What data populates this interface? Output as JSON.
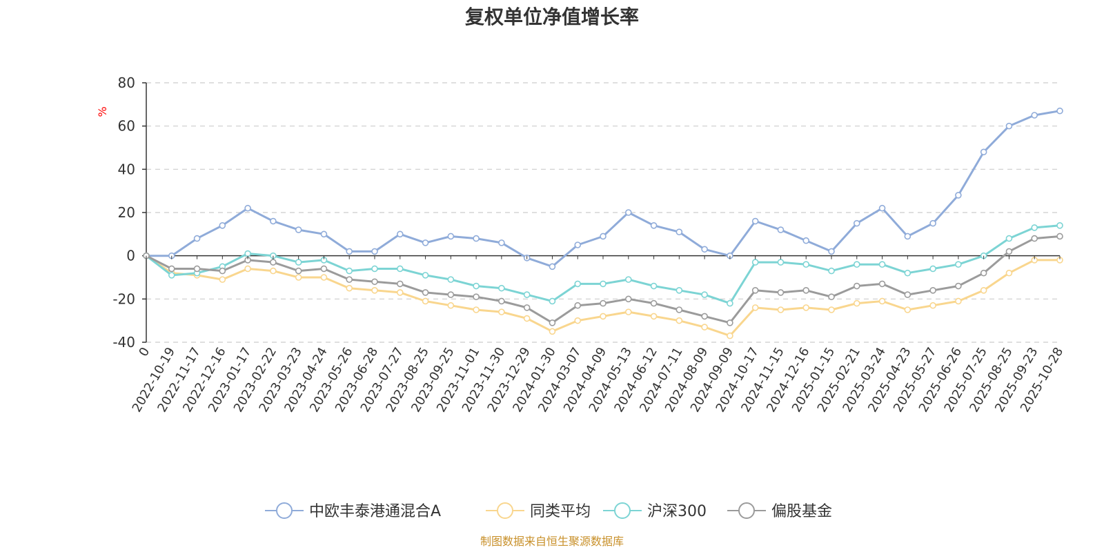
{
  "chart_data": {
    "type": "line",
    "title": "复权单位净值增长率",
    "ylabel": "%",
    "ylim": [
      -40,
      80
    ],
    "yticks": [
      -40,
      -20,
      0,
      20,
      40,
      60,
      80
    ],
    "grid": true,
    "legend_position": "bottom-center",
    "x": [
      "0",
      "2022-10-19",
      "2022-11-17",
      "2022-12-16",
      "2023-01-17",
      "2023-02-22",
      "2023-03-23",
      "2023-04-24",
      "2023-05-26",
      "2023-06-28",
      "2023-07-27",
      "2023-08-25",
      "2023-09-25",
      "2023-11-01",
      "2023-11-30",
      "2023-12-29",
      "2024-01-30",
      "2024-03-07",
      "2024-04-09",
      "2024-05-13",
      "2024-06-12",
      "2024-07-11",
      "2024-08-09",
      "2024-09-09",
      "2024-10-17",
      "2024-11-15",
      "2024-12-16",
      "2025-01-15",
      "2025-02-21",
      "2025-03-24",
      "2025-04-23",
      "2025-05-27",
      "2025-06-26",
      "2025-07-25",
      "2025-08-25",
      "2025-09-23",
      "2025-10-28"
    ],
    "series": [
      {
        "name": "中欧丰泰港通混合A",
        "color": "#8fabd9",
        "values": [
          0,
          0,
          8,
          14,
          22,
          16,
          12,
          10,
          2,
          2,
          10,
          6,
          9,
          8,
          6,
          -1,
          -5,
          5,
          9,
          20,
          14,
          11,
          3,
          0,
          16,
          12,
          7,
          2,
          15,
          22,
          9,
          15,
          28,
          48,
          60,
          65,
          67
        ]
      },
      {
        "name": "同类平均",
        "color": "#f9d68e",
        "values": [
          0,
          -8,
          -9,
          -11,
          -6,
          -7,
          -10,
          -10,
          -15,
          -16,
          -17,
          -21,
          -23,
          -25,
          -26,
          -29,
          -35,
          -30,
          -28,
          -26,
          -28,
          -30,
          -33,
          -37,
          -24,
          -25,
          -24,
          -25,
          -22,
          -21,
          -25,
          -23,
          -21,
          -16,
          -8,
          -2,
          -2
        ]
      },
      {
        "name": "沪深300",
        "color": "#7cd4d4",
        "values": [
          0,
          -9,
          -8,
          -5,
          1,
          0,
          -3,
          -2,
          -7,
          -6,
          -6,
          -9,
          -11,
          -14,
          -15,
          -18,
          -21,
          -13,
          -13,
          -11,
          -14,
          -16,
          -18,
          -22,
          -3,
          -3,
          -4,
          -7,
          -4,
          -4,
          -8,
          -6,
          -4,
          0,
          8,
          13,
          14
        ]
      },
      {
        "name": "偏股基金",
        "color": "#9b9b9b",
        "values": [
          0,
          -6,
          -6,
          -7,
          -2,
          -3,
          -7,
          -6,
          -11,
          -12,
          -13,
          -17,
          -18,
          -19,
          -21,
          -24,
          -31,
          -23,
          -22,
          -20,
          -22,
          -25,
          -28,
          -31,
          -16,
          -17,
          -16,
          -19,
          -14,
          -13,
          -18,
          -16,
          -14,
          -8,
          2,
          8,
          9
        ]
      }
    ]
  },
  "source_note": "制图数据来自恒生聚源数据库"
}
